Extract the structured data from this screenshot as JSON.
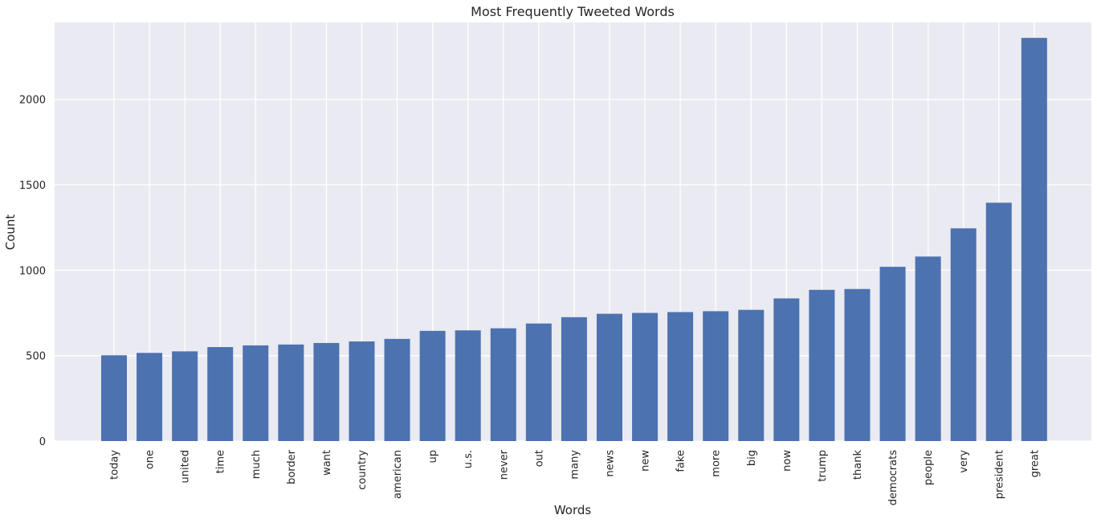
{
  "chart_data": {
    "type": "bar",
    "title": "Most Frequently Tweeted Words",
    "xlabel": "Words",
    "ylabel": "Count",
    "categories": [
      "today",
      "one",
      "united",
      "time",
      "much",
      "border",
      "want",
      "country",
      "american",
      "up",
      "u.s.",
      "never",
      "out",
      "many",
      "news",
      "new",
      "fake",
      "more",
      "big",
      "now",
      "trump",
      "thank",
      "democrats",
      "people",
      "very",
      "president",
      "great"
    ],
    "values": [
      502,
      516,
      525,
      550,
      560,
      565,
      574,
      583,
      598,
      645,
      648,
      660,
      688,
      725,
      745,
      750,
      755,
      760,
      768,
      835,
      885,
      890,
      1020,
      1080,
      1245,
      1395,
      2360
    ],
    "ylim": [
      0,
      2450
    ],
    "yticks": [
      0,
      500,
      1000,
      1500,
      2000
    ],
    "grid": true,
    "colors": {
      "bar": "#4c72b0",
      "background": "#eaeaf2",
      "grid": "#ffffff"
    }
  }
}
